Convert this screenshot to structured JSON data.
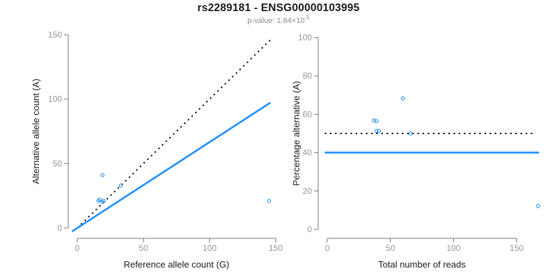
{
  "title": "rs2289181 - ENSG00000103995",
  "subtitle": {
    "text": "p-value: 1.64×10",
    "exponent": "-5"
  },
  "colors": {
    "accent_blue": "#1E8FFF",
    "dotted_black": "#000000",
    "axis_gray": "#767676",
    "tick_label_gray": "#949494",
    "subtitle_gray": "#8C8C8C"
  },
  "chart_data": [
    {
      "id": "allele-count-scatter",
      "type": "scatter",
      "xlabel": "Reference allele count (G)",
      "ylabel": "Alternative allele count (A)",
      "xlim": [
        0,
        150
      ],
      "ylim": [
        0,
        150
      ],
      "xticks": [
        0,
        50,
        100,
        150
      ],
      "yticks": [
        0,
        50,
        100,
        150
      ],
      "grid": false,
      "legend": "none",
      "points": [
        [
          16,
          21
        ],
        [
          17,
          22
        ],
        [
          19,
          20
        ],
        [
          20,
          21
        ],
        [
          19,
          41
        ],
        [
          33,
          33
        ],
        [
          145,
          21
        ]
      ],
      "lines": [
        {
          "name": "identity-line",
          "style": "dotted",
          "color": "#000000",
          "from": [
            0,
            0
          ],
          "to": [
            147,
            147
          ]
        },
        {
          "name": "expected-ratio-line",
          "style": "solid",
          "color": "#1E8FFF",
          "from": [
            -4,
            -2.7
          ],
          "to": [
            146,
            97.3
          ]
        }
      ]
    },
    {
      "id": "percentage-vs-reads-scatter",
      "type": "scatter",
      "xlabel": "Total number of reads",
      "ylabel": "Percentage alternative (A)",
      "xlim": [
        0,
        167
      ],
      "ylim": [
        0,
        100
      ],
      "xticks": [
        0,
        50,
        100,
        150
      ],
      "yticks": [
        0,
        20,
        40,
        60,
        80,
        100
      ],
      "grid": false,
      "legend": "none",
      "points": [
        [
          37,
          56.8
        ],
        [
          39,
          56.4
        ],
        [
          39,
          51.3
        ],
        [
          41,
          51.2
        ],
        [
          60,
          68.3
        ],
        [
          66,
          50
        ],
        [
          167,
          12.1
        ]
      ],
      "lines": [
        {
          "name": "null-50-percent-line",
          "style": "dotted",
          "color": "#000000",
          "from": [
            -2,
            50
          ],
          "to": [
            164.5,
            50
          ]
        },
        {
          "name": "fitted-percentage-line",
          "style": "solid",
          "color": "#1E8FFF",
          "from": [
            -2,
            40
          ],
          "to": [
            167.8,
            40
          ]
        }
      ]
    }
  ]
}
